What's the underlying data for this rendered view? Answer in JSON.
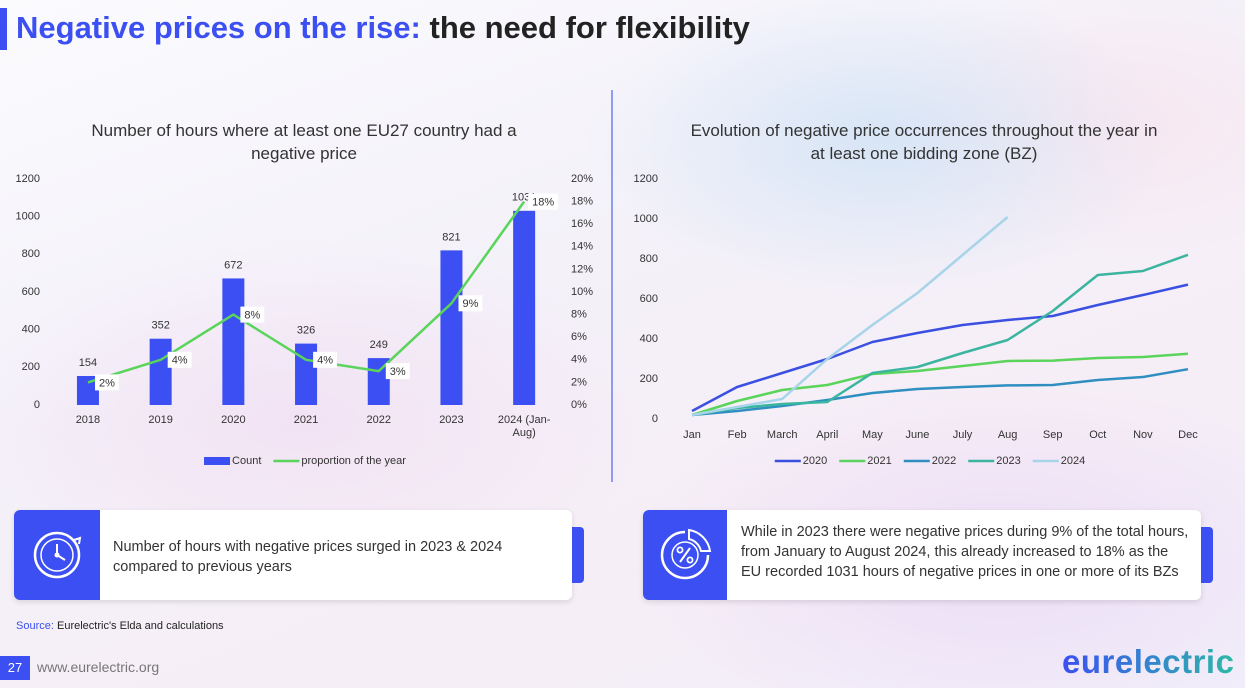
{
  "title": {
    "highlight": "Negative prices on the rise:",
    "rest": "the need for flexibility"
  },
  "chart_data": [
    {
      "type": "bar",
      "title": "Number of hours where at least one EU27 country had a negative price",
      "categories": [
        "2018",
        "2019",
        "2020",
        "2021",
        "2022",
        "2023",
        "2024 (Jan-Aug)"
      ],
      "series": [
        {
          "name": "Count",
          "type": "bar",
          "color": "#3b4ff2",
          "values": [
            154,
            352,
            672,
            326,
            249,
            821,
            1031
          ]
        },
        {
          "name": "proportion of the year",
          "type": "line",
          "axis": "y2",
          "color": "#5ad45a",
          "values": [
            2,
            4,
            8,
            4,
            3,
            9,
            18
          ],
          "value_labels": [
            "2%",
            "4%",
            "8%",
            "4%",
            "3%",
            "9%",
            "18%"
          ]
        }
      ],
      "ylim": [
        0,
        1200
      ],
      "yticks": [
        0,
        200,
        400,
        600,
        800,
        1000,
        1200
      ],
      "y2lim": [
        0,
        20
      ],
      "y2ticks": [
        {
          "value": 0,
          "label": "0%"
        },
        {
          "value": 2,
          "label": "2%"
        },
        {
          "value": 4,
          "label": "4%"
        },
        {
          "value": 6,
          "label": "6%"
        },
        {
          "value": 8,
          "label": "8%"
        },
        {
          "value": 10,
          "label": "10%"
        },
        {
          "value": 12,
          "label": "12%"
        },
        {
          "value": 14,
          "label": "14%"
        },
        {
          "value": 16,
          "label": "16%"
        },
        {
          "value": 18,
          "label": "18%"
        },
        {
          "value": 20,
          "label": "20%"
        }
      ],
      "legend": "bottom"
    },
    {
      "type": "line",
      "title": "Evolution of negative price occurrences throughout the year in at least one bidding zone (BZ)",
      "categories": [
        "Jan",
        "Feb",
        "March",
        "April",
        "May",
        "June",
        "July",
        "Aug",
        "Sep",
        "Oct",
        "Nov",
        "Dec"
      ],
      "series": [
        {
          "name": "2020",
          "color": "#3b4fe0",
          "values": [
            40,
            160,
            230,
            300,
            385,
            430,
            470,
            495,
            515,
            570,
            620,
            672
          ]
        },
        {
          "name": "2021",
          "color": "#5ad45a",
          "values": [
            20,
            90,
            145,
            170,
            225,
            240,
            265,
            290,
            292,
            305,
            310,
            326
          ]
        },
        {
          "name": "2022",
          "color": "#2f8fc1",
          "values": [
            20,
            40,
            65,
            95,
            130,
            150,
            160,
            168,
            170,
            195,
            210,
            249
          ]
        },
        {
          "name": "2023",
          "color": "#3bb5a0",
          "values": [
            20,
            55,
            75,
            85,
            230,
            260,
            330,
            395,
            540,
            720,
            740,
            821
          ]
        },
        {
          "name": "2024",
          "color": "#a8d4ea",
          "values": [
            20,
            60,
            100,
            300,
            470,
            630,
            820,
            1010,
            null,
            null,
            null,
            null
          ]
        }
      ],
      "ylim": [
        0,
        1200
      ],
      "yticks": [
        0,
        200,
        400,
        600,
        800,
        1000,
        1200
      ],
      "legend": "bottom"
    }
  ],
  "callouts": [
    {
      "text": "Number of hours with negative prices surged in 2023 & 2024 compared to previous years"
    },
    {
      "text": "While in 2023 there were negative prices during 9% of the total hours, from January to August 2024, this already increased to 18% as the EU recorded 1031 hours of negative prices in one or more of its BZs"
    }
  ],
  "source": {
    "label": "Source:",
    "text": "Eurelectric's Elda and calculations"
  },
  "footer": {
    "page": "27",
    "url": "www.eurelectric.org",
    "logo": "eurelectric"
  }
}
